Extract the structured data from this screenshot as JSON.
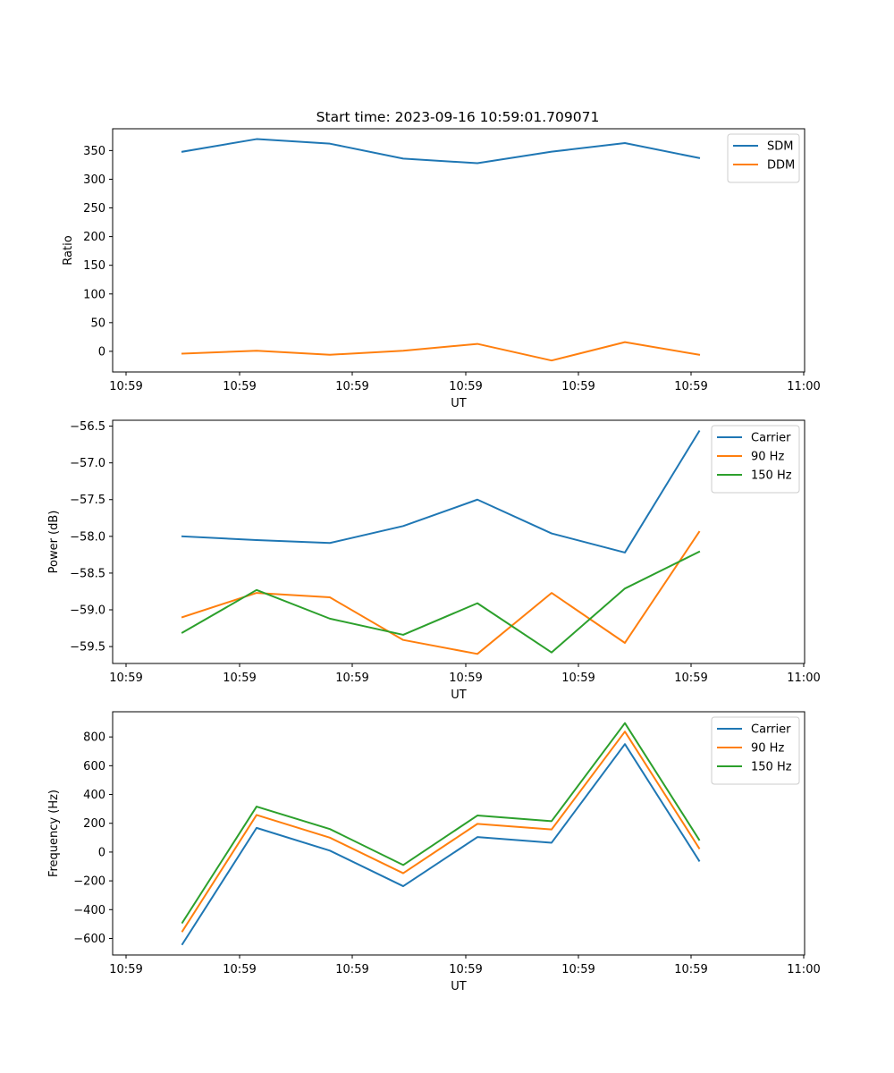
{
  "chart_data": [
    {
      "type": "line",
      "title": "Start time: 2023-09-16 10:59:01.709071",
      "xlabel": "UT",
      "ylabel": "Ratio",
      "x_tick_labels": [
        "10:59",
        "10:59",
        "10:59",
        "10:59",
        "10:59",
        "10:59",
        "11:00"
      ],
      "x_sample_index": [
        0,
        1,
        2,
        3,
        4,
        5,
        6,
        7
      ],
      "ylim": [
        -36,
        388
      ],
      "yticks": [
        0,
        50,
        100,
        150,
        200,
        250,
        300,
        350
      ],
      "ytick_labels": [
        "0",
        "50",
        "100",
        "150",
        "200",
        "250",
        "300",
        "350"
      ],
      "legend": "top-right",
      "series": [
        {
          "name": "SDM",
          "color": "#1f77b4",
          "values": [
            348,
            370,
            362,
            336,
            328,
            348,
            363,
            337
          ]
        },
        {
          "name": "DDM",
          "color": "#ff7f0e",
          "values": [
            -4,
            1,
            -6,
            1,
            13,
            -16,
            16,
            -6
          ]
        }
      ]
    },
    {
      "type": "line",
      "title": "",
      "xlabel": "UT",
      "ylabel": "Power (dB)",
      "x_tick_labels": [
        "10:59",
        "10:59",
        "10:59",
        "10:59",
        "10:59",
        "10:59",
        "11:00"
      ],
      "x_sample_index": [
        0,
        1,
        2,
        3,
        4,
        5,
        6,
        7
      ],
      "ylim": [
        -59.73,
        -56.42
      ],
      "yticks": [
        -59.5,
        -59.0,
        -58.5,
        -58.0,
        -57.5,
        -57.0,
        -56.5
      ],
      "ytick_labels": [
        "−59.5",
        "−59.0",
        "−58.5",
        "−58.0",
        "−57.5",
        "−57.0",
        "−56.5"
      ],
      "legend": "top-right",
      "series": [
        {
          "name": "Carrier",
          "color": "#1f77b4",
          "values": [
            -58.0,
            -58.05,
            -58.09,
            -57.86,
            -57.5,
            -57.96,
            -58.22,
            -56.57
          ]
        },
        {
          "name": "90 Hz",
          "color": "#ff7f0e",
          "values": [
            -59.1,
            -58.77,
            -58.83,
            -59.41,
            -59.6,
            -58.77,
            -59.45,
            -57.94
          ]
        },
        {
          "name": "150 Hz",
          "color": "#2ca02c",
          "values": [
            -59.31,
            -58.73,
            -59.12,
            -59.34,
            -58.91,
            -59.58,
            -58.71,
            -58.21
          ]
        }
      ]
    },
    {
      "type": "line",
      "title": "",
      "xlabel": "UT",
      "ylabel": "Frequency (Hz)",
      "x_tick_labels": [
        "10:59",
        "10:59",
        "10:59",
        "10:59",
        "10:59",
        "10:59",
        "11:00"
      ],
      "x_sample_index": [
        0,
        1,
        2,
        3,
        4,
        5,
        6,
        7
      ],
      "ylim": [
        -715,
        975
      ],
      "yticks": [
        -600,
        -400,
        -200,
        0,
        200,
        400,
        600,
        800
      ],
      "ytick_labels": [
        "−600",
        "−400",
        "−200",
        "0",
        "200",
        "400",
        "600",
        "800"
      ],
      "legend": "top-right",
      "series": [
        {
          "name": "Carrier",
          "color": "#1f77b4",
          "values": [
            -640,
            168,
            10,
            -237,
            104,
            65,
            750,
            -60
          ]
        },
        {
          "name": "90 Hz",
          "color": "#ff7f0e",
          "values": [
            -550,
            258,
            100,
            -147,
            196,
            157,
            837,
            27
          ]
        },
        {
          "name": "150 Hz",
          "color": "#2ca02c",
          "values": [
            -490,
            316,
            160,
            -90,
            254,
            215,
            896,
            86
          ]
        }
      ]
    }
  ]
}
